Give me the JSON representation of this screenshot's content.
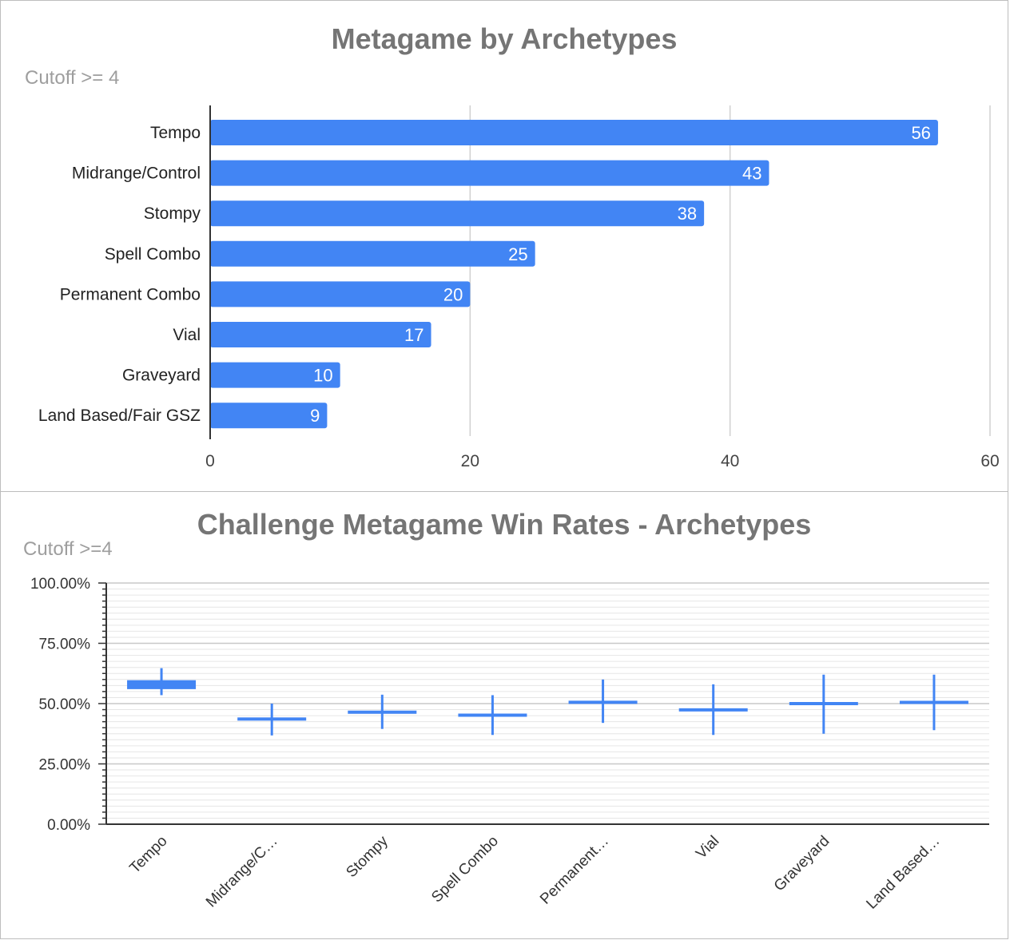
{
  "chart_data": [
    {
      "type": "bar",
      "orientation": "horizontal",
      "title": "Metagame by Archetypes",
      "subtitle": "Cutoff >= 4",
      "categories": [
        "Tempo",
        "Midrange/Control",
        "Stompy",
        "Spell Combo",
        "Permanent Combo",
        "Vial",
        "Graveyard",
        "Land Based/Fair GSZ"
      ],
      "values": [
        56,
        43,
        38,
        25,
        20,
        17,
        10,
        9
      ],
      "xlim": [
        0,
        60
      ],
      "xticks": [
        "0",
        "20",
        "40",
        "60"
      ],
      "grid": true,
      "bar_color": "#4285f4",
      "data_labels": true
    },
    {
      "type": "candlestick",
      "title": "Challenge Metagame Win Rates - Archetypes",
      "subtitle": "Cutoff >=4",
      "categories": [
        "Tempo",
        "Midrange/C…",
        "Stompy",
        "Spell Combo",
        "Permanent…",
        "Vial",
        "Graveyard",
        "Land Based…"
      ],
      "low": [
        53.5,
        36.8,
        39.5,
        37.0,
        42.0,
        37.0,
        37.5,
        39.0
      ],
      "open": [
        56.0,
        43.6,
        46.5,
        45.2,
        51.0,
        47.4,
        50.0,
        50.5
      ],
      "close": [
        59.7,
        43.6,
        47.1,
        45.2,
        51.2,
        47.4,
        50.0,
        50.5
      ],
      "high": [
        64.7,
        50.0,
        53.7,
        53.5,
        60.0,
        58.0,
        62.0,
        62.0
      ],
      "ylim": [
        0,
        100
      ],
      "yticks": [
        "0.00%",
        "25.00%",
        "50.00%",
        "75.00%",
        "100.00%"
      ],
      "grid": true,
      "color": "#4285f4"
    }
  ]
}
